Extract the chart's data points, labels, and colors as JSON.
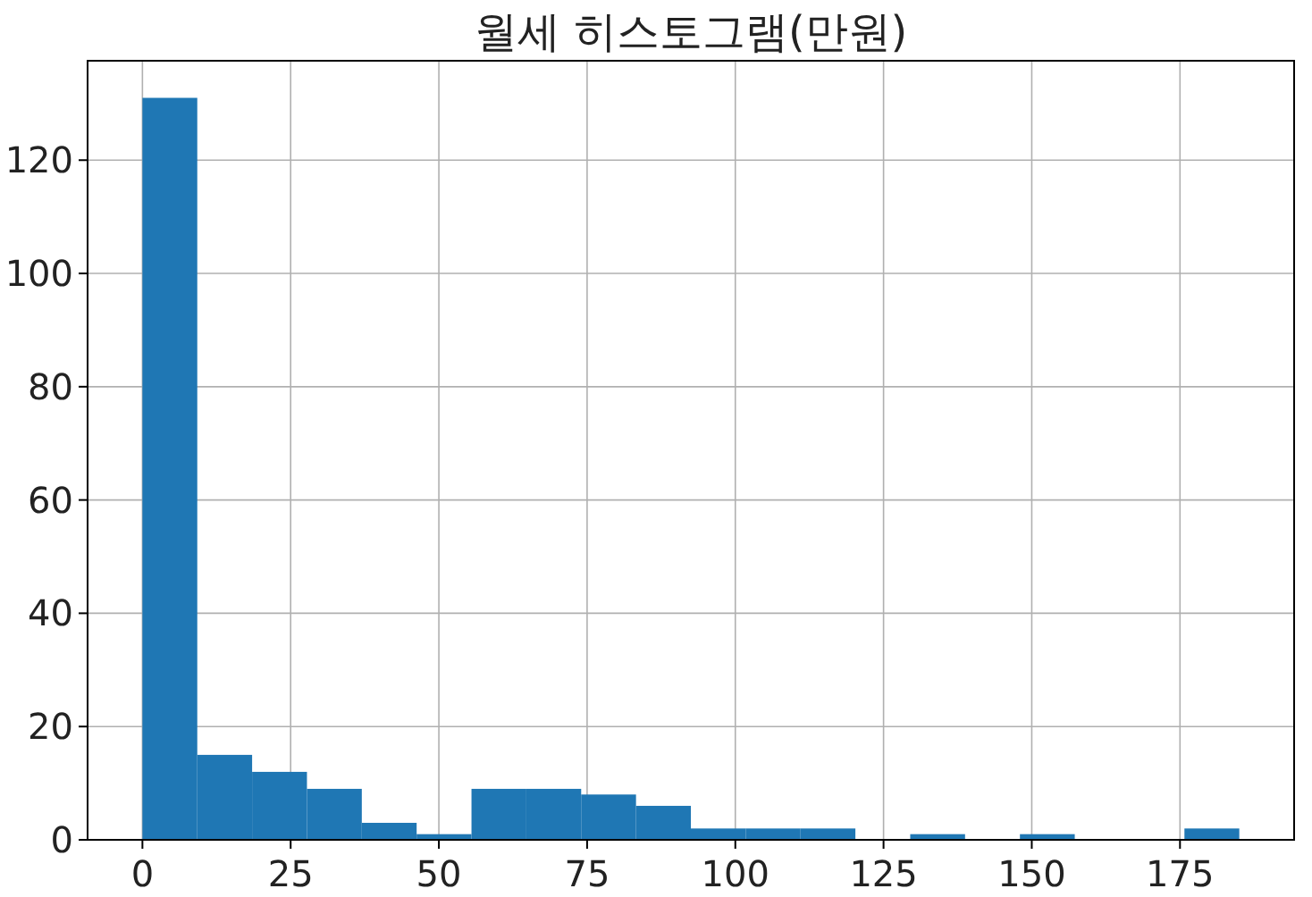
{
  "chart_data": {
    "type": "histogram",
    "title": "월세 히스토그램(만원)",
    "bins": [
      0,
      9.25,
      18.5,
      27.75,
      37,
      46.25,
      55.5,
      64.75,
      74,
      83.25,
      92.5,
      101.75,
      111,
      120.25,
      129.5,
      138.75,
      148,
      157.25,
      166.5,
      175.75,
      185
    ],
    "values": [
      131,
      15,
      12,
      9,
      3,
      1,
      9,
      9,
      8,
      6,
      2,
      2,
      2,
      0,
      1,
      0,
      1,
      0,
      0,
      2
    ],
    "color": "#1f77b4",
    "xlim": [
      -9.25,
      194.25
    ],
    "xticks": [
      0,
      25,
      50,
      75,
      100,
      125,
      150,
      175
    ],
    "ylim": [
      0,
      137.55
    ],
    "yticks": [
      0,
      20,
      40,
      60,
      80,
      100,
      120
    ],
    "grid": true
  }
}
